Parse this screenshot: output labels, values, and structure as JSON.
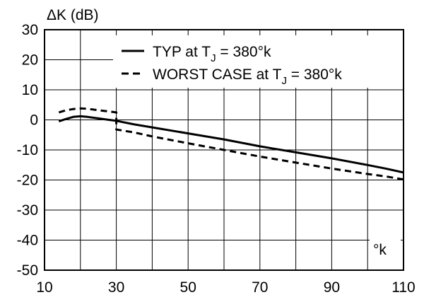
{
  "chart_data": {
    "type": "line",
    "title": "",
    "ylabel": "ΔK (dB)",
    "xlabel": "°k",
    "xlim": [
      10,
      110
    ],
    "ylim": [
      -50,
      30
    ],
    "xticks": [
      10,
      30,
      50,
      70,
      90,
      110
    ],
    "yticks": [
      30,
      20,
      10,
      0,
      -10,
      -20,
      -30,
      -40,
      -50
    ],
    "grid": true,
    "legend_position": "top-right",
    "series": [
      {
        "name_main": "TYP at T",
        "name_sub": "J",
        "name_tail": " = 380°k",
        "style": "solid",
        "x": [
          14,
          16,
          18,
          20,
          22,
          25,
          28,
          30,
          35,
          40,
          50,
          60,
          70,
          80,
          90,
          100,
          105,
          110
        ],
        "y": [
          -0.5,
          0.3,
          1.0,
          1.2,
          1.0,
          0.5,
          0.0,
          -0.3,
          -1.5,
          -2.5,
          -4.5,
          -6.5,
          -8.8,
          -10.8,
          -12.8,
          -15.0,
          -16.2,
          -17.5
        ]
      },
      {
        "name_main": "WORST CASE at T",
        "name_sub": "J",
        "name_tail": " = 380°k",
        "style": "dashed",
        "x": [
          14,
          16,
          18,
          20,
          22,
          25,
          28,
          30,
          30,
          35,
          40,
          50,
          60,
          70,
          80,
          90,
          100,
          105,
          110
        ],
        "y": [
          2.5,
          3.2,
          3.6,
          3.8,
          3.7,
          3.2,
          2.8,
          2.5,
          -3.2,
          -4.2,
          -5.5,
          -7.8,
          -10.0,
          -12.2,
          -14.2,
          -16.2,
          -18.0,
          -18.8,
          -19.8
        ]
      }
    ]
  }
}
